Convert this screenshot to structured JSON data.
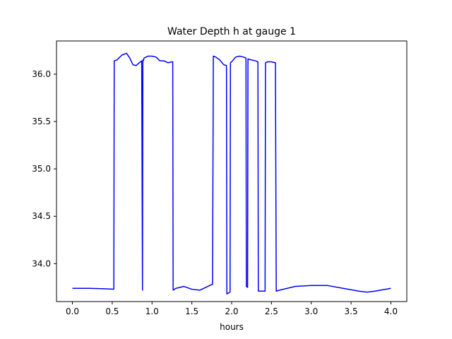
{
  "chart_data": {
    "type": "line",
    "title": "Water Depth h at gauge 1",
    "xlabel": "hours",
    "ylabel": "",
    "xlim": [
      -0.2,
      4.2
    ],
    "ylim": [
      33.6,
      36.35
    ],
    "xticks": [
      0.0,
      0.5,
      1.0,
      1.5,
      2.0,
      2.5,
      3.0,
      3.5,
      4.0
    ],
    "xtick_labels": [
      "0.0",
      "0.5",
      "1.0",
      "1.5",
      "2.0",
      "2.5",
      "3.0",
      "3.5",
      "4.0"
    ],
    "yticks": [
      34.0,
      34.5,
      35.0,
      35.5,
      36.0
    ],
    "ytick_labels": [
      "34.0",
      "34.5",
      "35.0",
      "35.5",
      "36.0"
    ],
    "grid": false,
    "series": [
      {
        "color": "#0000ff",
        "x": [
          0.0,
          0.2,
          0.4,
          0.52,
          0.525,
          0.56,
          0.62,
          0.68,
          0.72,
          0.76,
          0.8,
          0.84,
          0.87,
          0.88,
          0.885,
          0.89,
          0.9,
          0.95,
          1.0,
          1.05,
          1.1,
          1.15,
          1.2,
          1.25,
          1.26,
          1.265,
          1.3,
          1.4,
          1.5,
          1.6,
          1.7,
          1.75,
          1.76,
          1.77,
          1.8,
          1.85,
          1.9,
          1.935,
          1.94,
          1.98,
          1.985,
          2.0,
          2.05,
          2.1,
          2.15,
          2.18,
          2.185,
          2.2,
          2.205,
          2.25,
          2.3,
          2.33,
          2.335,
          2.42,
          2.425,
          2.45,
          2.5,
          2.55,
          2.56,
          2.6,
          2.8,
          3.0,
          3.2,
          3.4,
          3.6,
          3.7,
          3.8,
          4.0
        ],
        "y": [
          33.74,
          33.74,
          33.735,
          33.73,
          36.14,
          36.15,
          36.2,
          36.22,
          36.17,
          36.1,
          36.09,
          36.12,
          36.14,
          33.72,
          36.15,
          36.14,
          36.17,
          36.19,
          36.19,
          36.18,
          36.14,
          36.14,
          36.12,
          36.13,
          36.13,
          33.72,
          33.74,
          33.76,
          33.73,
          33.72,
          33.76,
          33.78,
          33.78,
          36.19,
          36.18,
          36.15,
          36.1,
          36.09,
          33.68,
          33.7,
          36.12,
          36.13,
          36.18,
          36.19,
          36.18,
          36.17,
          33.76,
          33.75,
          36.16,
          36.15,
          36.14,
          36.13,
          33.71,
          33.71,
          36.12,
          36.13,
          36.13,
          36.12,
          33.71,
          33.72,
          33.76,
          33.77,
          33.77,
          33.74,
          33.71,
          33.7,
          33.71,
          33.74
        ]
      }
    ]
  }
}
